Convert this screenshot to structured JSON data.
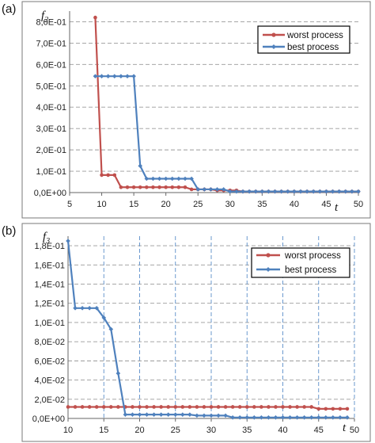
{
  "chart_data": [
    {
      "panel_label": "(a)",
      "type": "line",
      "y_label": "f",
      "y_label_sub": "2",
      "x_label": "t",
      "xlim": [
        5,
        50
      ],
      "ylim": [
        0,
        0.85
      ],
      "x_ticks": [
        5,
        10,
        15,
        20,
        25,
        30,
        35,
        40,
        45,
        50
      ],
      "y_ticks": [
        0,
        0.1,
        0.2,
        0.3,
        0.4,
        0.5,
        0.6,
        0.7,
        0.8
      ],
      "y_tick_labels": [
        "0,0E+00",
        "1,0E-01",
        "2,0E-01",
        "3,0E-01",
        "4,0E-01",
        "5,0E-01",
        "6,0E-01",
        "7,0E-01",
        "8,0E-01"
      ],
      "grid": {
        "horizontal": "dashed",
        "vertical": "none"
      },
      "legend_position": "top-right",
      "series": [
        {
          "name": "worst process",
          "color": "#c0504d",
          "marker": "circle",
          "points": [
            [
              9,
              0.82
            ],
            [
              10,
              0.082
            ],
            [
              11,
              0.082
            ],
            [
              12,
              0.082
            ],
            [
              13,
              0.025
            ],
            [
              14,
              0.025
            ],
            [
              15,
              0.025
            ],
            [
              16,
              0.025
            ],
            [
              17,
              0.025
            ],
            [
              18,
              0.025
            ],
            [
              19,
              0.025
            ],
            [
              20,
              0.025
            ],
            [
              21,
              0.025
            ],
            [
              22,
              0.025
            ],
            [
              23,
              0.025
            ],
            [
              24,
              0.015
            ],
            [
              25,
              0.015
            ],
            [
              26,
              0.015
            ],
            [
              27,
              0.015
            ],
            [
              28,
              0.01
            ],
            [
              29,
              0.01
            ],
            [
              30,
              0.01
            ],
            [
              31,
              0.01
            ],
            [
              32,
              0.005
            ],
            [
              33,
              0.005
            ],
            [
              34,
              0.005
            ],
            [
              35,
              0.005
            ],
            [
              36,
              0.005
            ],
            [
              37,
              0.005
            ],
            [
              38,
              0.005
            ],
            [
              39,
              0.005
            ],
            [
              40,
              0.005
            ],
            [
              41,
              0.005
            ],
            [
              42,
              0.005
            ],
            [
              43,
              0.005
            ],
            [
              44,
              0.005
            ],
            [
              45,
              0.005
            ],
            [
              46,
              0.005
            ],
            [
              47,
              0.005
            ],
            [
              48,
              0.005
            ],
            [
              49,
              0.005
            ],
            [
              50,
              0.005
            ]
          ]
        },
        {
          "name": "best process",
          "color": "#4f81bd",
          "marker": "diamond",
          "points": [
            [
              9,
              0.545
            ],
            [
              10,
              0.545
            ],
            [
              11,
              0.545
            ],
            [
              12,
              0.545
            ],
            [
              13,
              0.545
            ],
            [
              14,
              0.545
            ],
            [
              15,
              0.545
            ],
            [
              16,
              0.125
            ],
            [
              17,
              0.065
            ],
            [
              18,
              0.065
            ],
            [
              19,
              0.065
            ],
            [
              20,
              0.065
            ],
            [
              21,
              0.065
            ],
            [
              22,
              0.065
            ],
            [
              23,
              0.065
            ],
            [
              24,
              0.065
            ],
            [
              25,
              0.015
            ],
            [
              26,
              0.015
            ],
            [
              27,
              0.015
            ],
            [
              28,
              0.015
            ],
            [
              29,
              0.015
            ],
            [
              30,
              0.005
            ],
            [
              31,
              0.005
            ],
            [
              32,
              0.005
            ],
            [
              33,
              0.005
            ],
            [
              34,
              0.005
            ],
            [
              35,
              0.005
            ],
            [
              36,
              0.005
            ],
            [
              37,
              0.005
            ],
            [
              38,
              0.005
            ],
            [
              39,
              0.005
            ],
            [
              40,
              0.005
            ],
            [
              41,
              0.005
            ],
            [
              42,
              0.005
            ],
            [
              43,
              0.005
            ],
            [
              44,
              0.005
            ],
            [
              45,
              0.005
            ],
            [
              46,
              0.005
            ],
            [
              47,
              0.005
            ],
            [
              48,
              0.005
            ],
            [
              49,
              0.005
            ],
            [
              50,
              0.005
            ]
          ]
        }
      ]
    },
    {
      "panel_label": "(b)",
      "type": "line",
      "y_label": "f",
      "y_label_sub": "3",
      "x_label": "t",
      "xlim": [
        10,
        50
      ],
      "ylim": [
        0,
        0.19
      ],
      "x_ticks": [
        10,
        15,
        20,
        25,
        30,
        35,
        40,
        45,
        50
      ],
      "y_ticks": [
        0,
        0.02,
        0.04,
        0.06,
        0.08,
        0.1,
        0.12,
        0.14,
        0.16,
        0.18
      ],
      "y_tick_labels": [
        "0,0E+00",
        "2,0E-02",
        "4,0E-02",
        "6,0E-02",
        "8,0E-02",
        "1,0E-01",
        "1,2E-01",
        "1,4E-01",
        "1,6E-01",
        "1,8E-01"
      ],
      "grid": {
        "horizontal": "dashed",
        "vertical": "dashed"
      },
      "legend_position": "top-right",
      "series": [
        {
          "name": "worst process",
          "color": "#c0504d",
          "marker": "circle",
          "points": [
            [
              10,
              0.012
            ],
            [
              11,
              0.012
            ],
            [
              12,
              0.012
            ],
            [
              13,
              0.012
            ],
            [
              14,
              0.012
            ],
            [
              15,
              0.012
            ],
            [
              16,
              0.012
            ],
            [
              17,
              0.012
            ],
            [
              18,
              0.012
            ],
            [
              19,
              0.012
            ],
            [
              20,
              0.012
            ],
            [
              21,
              0.012
            ],
            [
              22,
              0.012
            ],
            [
              23,
              0.012
            ],
            [
              24,
              0.012
            ],
            [
              25,
              0.012
            ],
            [
              26,
              0.012
            ],
            [
              27,
              0.012
            ],
            [
              28,
              0.012
            ],
            [
              29,
              0.012
            ],
            [
              30,
              0.012
            ],
            [
              31,
              0.012
            ],
            [
              32,
              0.012
            ],
            [
              33,
              0.012
            ],
            [
              34,
              0.012
            ],
            [
              35,
              0.012
            ],
            [
              36,
              0.012
            ],
            [
              37,
              0.012
            ],
            [
              38,
              0.012
            ],
            [
              39,
              0.012
            ],
            [
              40,
              0.012
            ],
            [
              41,
              0.012
            ],
            [
              42,
              0.012
            ],
            [
              43,
              0.012
            ],
            [
              44,
              0.012
            ],
            [
              45,
              0.01
            ],
            [
              46,
              0.01
            ],
            [
              47,
              0.01
            ],
            [
              48,
              0.01
            ],
            [
              49,
              0.01
            ]
          ]
        },
        {
          "name": "best process",
          "color": "#4f81bd",
          "marker": "diamond",
          "points": [
            [
              10,
              0.185
            ],
            [
              11,
              0.115
            ],
            [
              12,
              0.115
            ],
            [
              13,
              0.115
            ],
            [
              14,
              0.115
            ],
            [
              15,
              0.105
            ],
            [
              16,
              0.093
            ],
            [
              17,
              0.047
            ],
            [
              18,
              0.004
            ],
            [
              19,
              0.004
            ],
            [
              20,
              0.004
            ],
            [
              21,
              0.004
            ],
            [
              22,
              0.004
            ],
            [
              23,
              0.004
            ],
            [
              24,
              0.004
            ],
            [
              25,
              0.004
            ],
            [
              26,
              0.004
            ],
            [
              27,
              0.004
            ],
            [
              28,
              0.003
            ],
            [
              29,
              0.003
            ],
            [
              30,
              0.003
            ],
            [
              31,
              0.003
            ],
            [
              32,
              0.003
            ],
            [
              33,
              0.001
            ],
            [
              34,
              0.001
            ],
            [
              35,
              0.001
            ],
            [
              36,
              0.001
            ],
            [
              37,
              0.001
            ],
            [
              38,
              0.001
            ],
            [
              39,
              0.001
            ],
            [
              40,
              0.001
            ],
            [
              41,
              0.001
            ],
            [
              42,
              0.001
            ],
            [
              43,
              0.001
            ],
            [
              44,
              0.001
            ],
            [
              45,
              0.001
            ],
            [
              46,
              0.001
            ],
            [
              47,
              0.001
            ],
            [
              48,
              0.001
            ],
            [
              49,
              0.001
            ]
          ]
        }
      ]
    }
  ]
}
